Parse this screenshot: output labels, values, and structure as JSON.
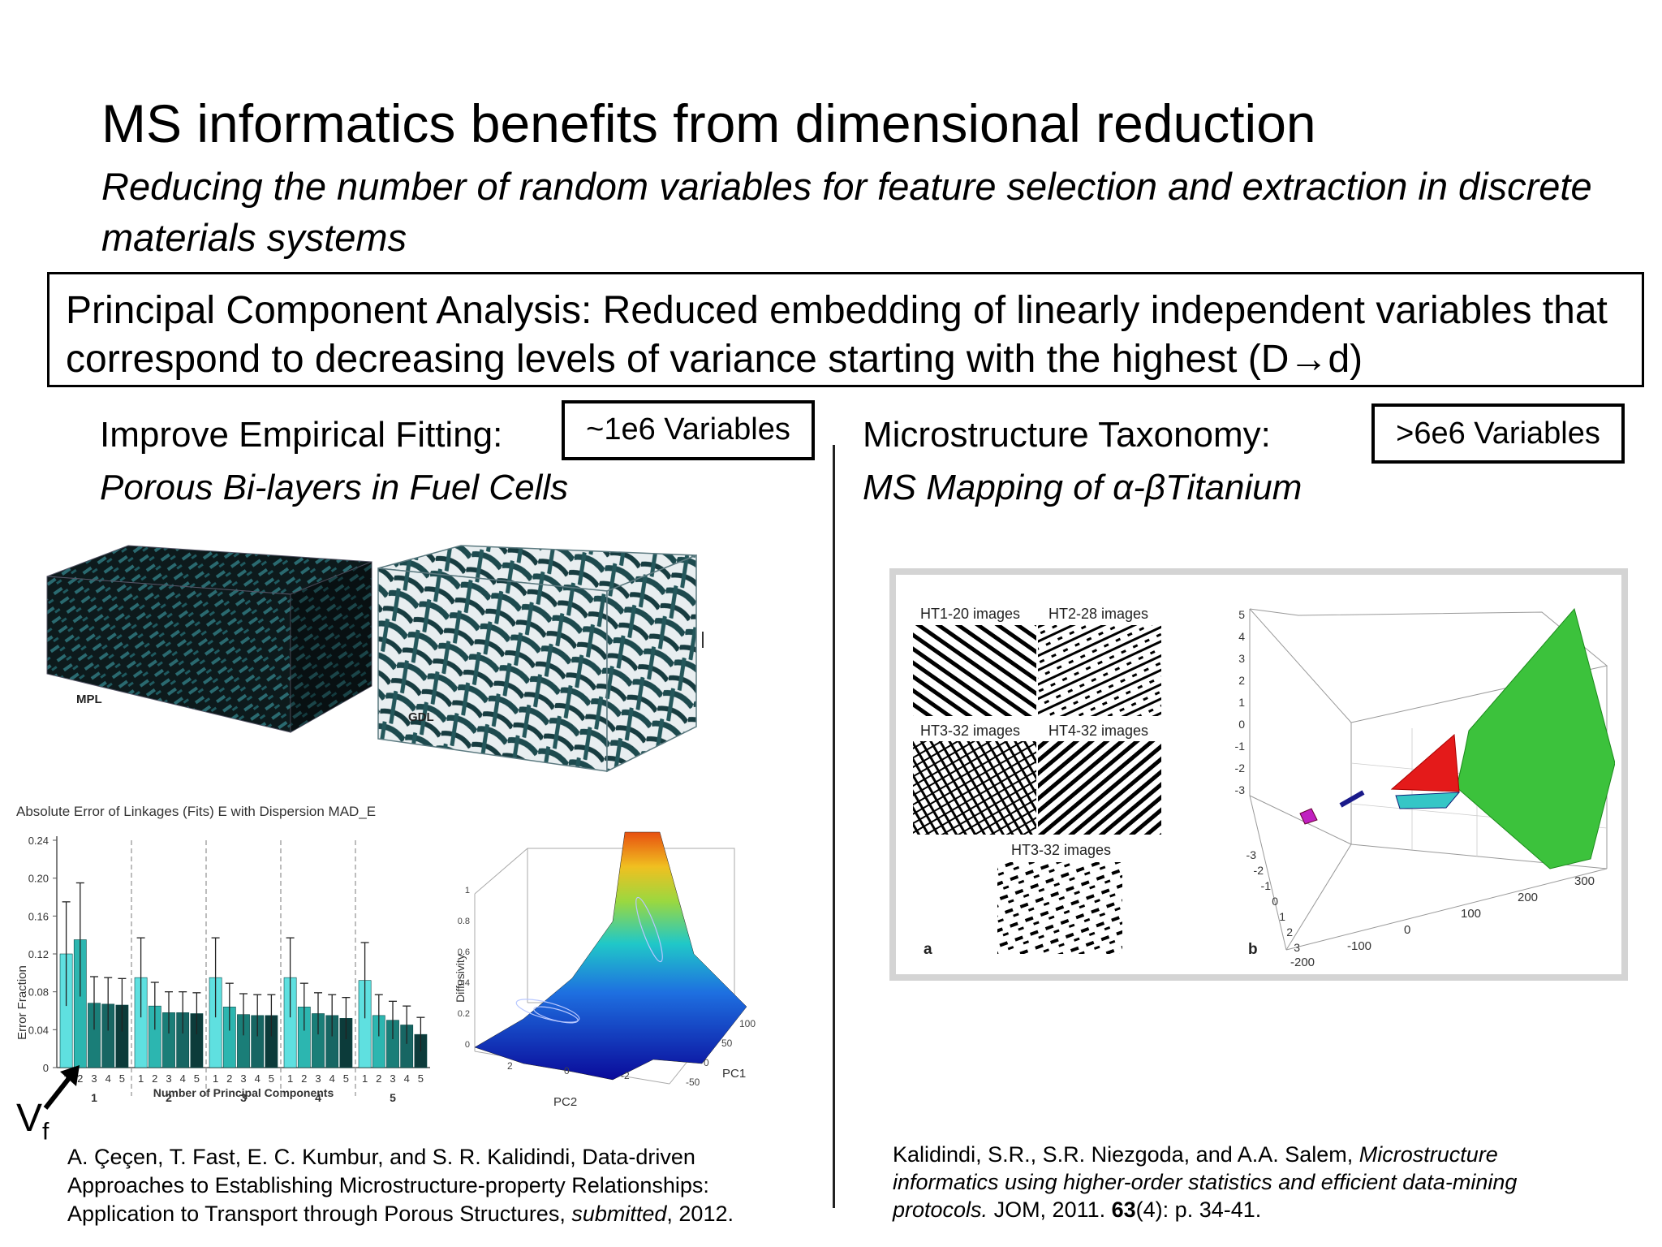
{
  "slide": {
    "title": "MS informatics benefits from dimensional reduction",
    "subtitle": "Reducing the number of random variables for feature selection and extraction in discrete materials systems",
    "pca_text": "Principal Component Analysis: Reduced embedding of linearly independent variables that correspond to decreasing levels of variance starting with the highest (D→d)"
  },
  "left": {
    "heading": "Improve Empirical Fitting:",
    "subheading": "Porous Bi-layers in Fuel Cells",
    "variables": "~1e6 Variables",
    "labels": {
      "mpl": "MPL",
      "gdl": "GDL"
    },
    "vf_label": "V",
    "vf_sub": "f",
    "citation": {
      "line1": "A. Çeçen, T. Fast, E. C. Kumbur, and S. R. Kalidindi, Data-driven",
      "line2": "Approaches to Establishing Microstructure-property Relationships:",
      "line3_pre": "Application to Transport through Porous Structures, ",
      "line3_it": "submitted",
      "line3_post": ", 2012."
    }
  },
  "right": {
    "heading": "Microstructure Taxonomy:",
    "subheading": "MS Mapping of α-βTitanium",
    "variables": ">6e6 Variables",
    "image_labels": [
      "HT1-20 images",
      "HT2-28 images",
      "HT3-32 images",
      "HT4-32 images",
      "HT3-32 images"
    ],
    "panel_a": "a",
    "panel_b": "b",
    "citation": {
      "line1_pre": "Kalidindi, S.R., S.R. Niezgoda, and A.A. Salem, ",
      "line1_it": "Microstructure",
      "line2_it": "informatics using higher-order statistics and efficient data-mining",
      "line3_it": "protocols.",
      "line3_pre": " JOM, 2011. ",
      "line3_bold": "63",
      "line3_post": "(4): p. 34-41."
    }
  },
  "chart_data": [
    {
      "type": "bar",
      "title": "Absolute Error of Linkages (Fits) E with Dispersion MAD_E",
      "xlabel": "Number of Principal Components",
      "ylabel": "Error Fraction",
      "ylim": [
        0,
        0.24
      ],
      "yticks": [
        "0",
        "0.04",
        "0.08",
        "0.12",
        "0.16",
        "0.20",
        "0.24"
      ],
      "groups": [
        "1",
        "2",
        "3",
        "4",
        "5"
      ],
      "bar_labels": [
        "1",
        "2",
        "3",
        "4",
        "5"
      ],
      "values": [
        [
          0.12,
          0.135,
          0.068,
          0.067,
          0.066
        ],
        [
          0.095,
          0.065,
          0.058,
          0.058,
          0.057
        ],
        [
          0.095,
          0.064,
          0.056,
          0.055,
          0.055
        ],
        [
          0.095,
          0.064,
          0.057,
          0.055,
          0.052
        ],
        [
          0.092,
          0.055,
          0.05,
          0.045,
          0.035
        ]
      ],
      "errors": [
        [
          0.055,
          0.06,
          0.028,
          0.028,
          0.028
        ],
        [
          0.042,
          0.025,
          0.022,
          0.022,
          0.022
        ],
        [
          0.042,
          0.025,
          0.022,
          0.022,
          0.022
        ],
        [
          0.042,
          0.025,
          0.022,
          0.022,
          0.022
        ],
        [
          0.04,
          0.022,
          0.02,
          0.02,
          0.018
        ]
      ]
    },
    {
      "type": "surface",
      "zlabel": "Diffusivity",
      "xlabel": "PC2",
      "ylabel": "PC1",
      "zticks": [
        "0",
        "0.2",
        "0.4",
        "0.6",
        "0.8",
        "1"
      ],
      "xticks": [
        "2",
        "0",
        "-2"
      ],
      "yticks": [
        "-50",
        "0",
        "50",
        "100"
      ]
    },
    {
      "type": "scatter3d",
      "zticks": [
        "5",
        "4",
        "3",
        "2",
        "1",
        "0",
        "-1",
        "-2",
        "-3"
      ],
      "xticks": [
        "-200",
        "-100",
        "0",
        "100",
        "200",
        "300"
      ],
      "yticks": [
        "-3",
        "-2",
        "-1",
        "0",
        "1",
        "2",
        "3"
      ]
    }
  ]
}
